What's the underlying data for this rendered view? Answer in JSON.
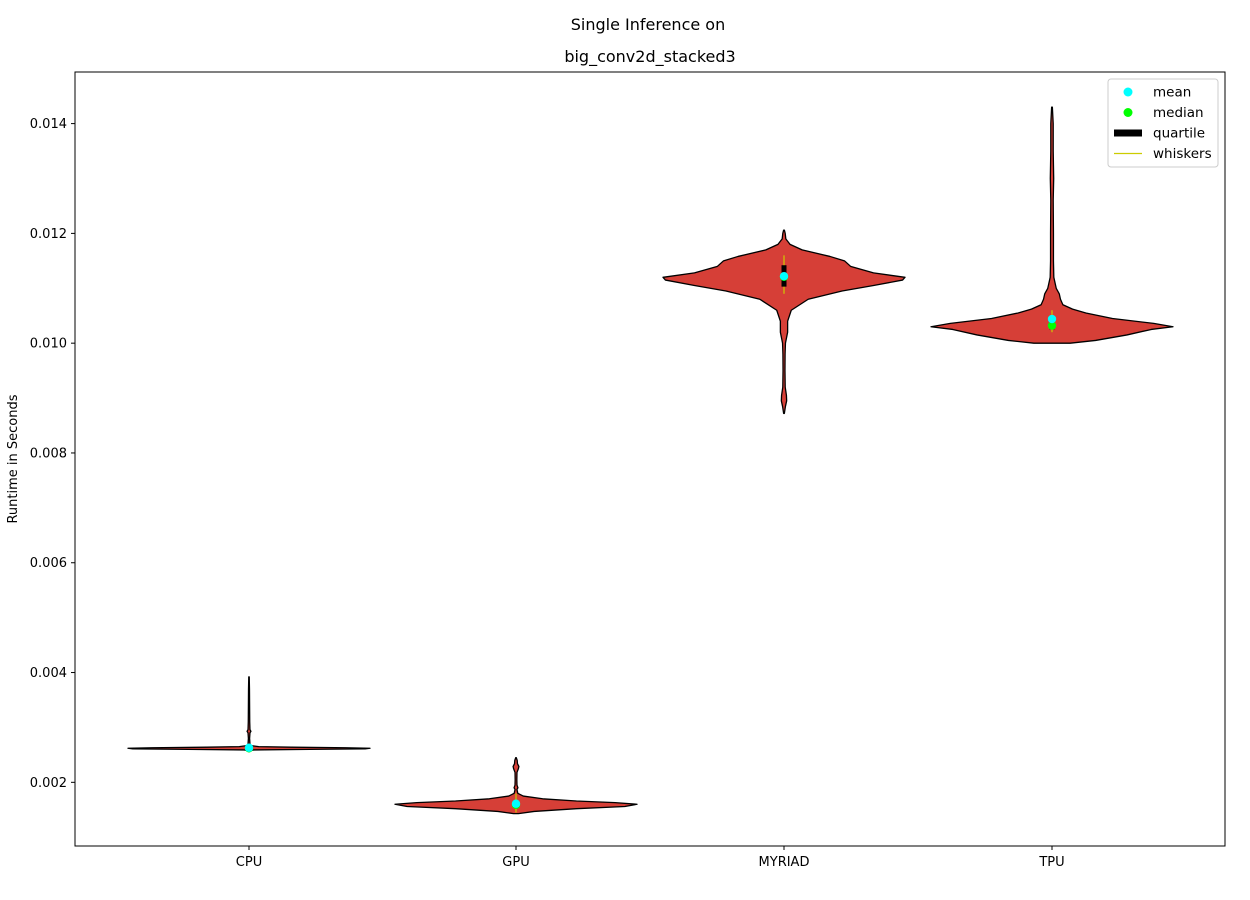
{
  "chart_data": {
    "type": "violin",
    "suptitle": "Single Inference on",
    "title": "big_conv2d_stacked3",
    "xlabel": "",
    "ylabel": "Runtime in Seconds",
    "categories": [
      "CPU",
      "GPU",
      "MYRIAD",
      "TPU"
    ],
    "ylim": [
      0.00084,
      0.01494
    ],
    "yticks": [
      0.002,
      0.004,
      0.006,
      0.008,
      0.01,
      0.012,
      0.014
    ],
    "ytick_labels": [
      "0.002",
      "0.004",
      "0.006",
      "0.008",
      "0.010",
      "0.012",
      "0.014"
    ],
    "grid": false,
    "legend_position": "top-right",
    "legend": [
      {
        "label": "mean",
        "kind": "dot",
        "color": "#00ffff"
      },
      {
        "label": "median",
        "kind": "dot",
        "color": "#00ff00"
      },
      {
        "label": "quartile",
        "kind": "bar",
        "color": "#000000"
      },
      {
        "label": "whiskers",
        "kind": "line",
        "color": "#cccc00"
      }
    ],
    "colors": {
      "violin_fill": "#d63f37",
      "violin_edge": "#000000",
      "mean": "#00ffff",
      "median": "#00ff00",
      "quartile": "#000000",
      "whisker": "#cccc00"
    },
    "series": [
      {
        "category": "CPU",
        "mean": 0.00263,
        "median": 0.00262,
        "q1": 0.0026,
        "q3": 0.00264,
        "whisker_low": 0.00257,
        "whisker_high": 0.0027,
        "density": [
          [
            0.00256,
            0.002
          ],
          [
            0.00258,
            0.012
          ],
          [
            0.00259,
            0.04
          ],
          [
            0.0026,
            0.5
          ],
          [
            0.00261,
            0.96
          ],
          [
            0.00262,
            1.0
          ],
          [
            0.00263,
            0.8
          ],
          [
            0.00264,
            0.35
          ],
          [
            0.00265,
            0.08
          ],
          [
            0.00267,
            0.012
          ],
          [
            0.0027,
            0.008
          ],
          [
            0.0028,
            0.005
          ],
          [
            0.0029,
            0.008
          ],
          [
            0.00293,
            0.016
          ],
          [
            0.00296,
            0.008
          ],
          [
            0.0031,
            0.006
          ],
          [
            0.0034,
            0.005
          ],
          [
            0.0037,
            0.004
          ],
          [
            0.00392,
            0.002
          ]
        ]
      },
      {
        "category": "GPU",
        "mean": 0.00161,
        "median": 0.00159,
        "q1": 0.00156,
        "q3": 0.00165,
        "whisker_low": 0.00145,
        "whisker_high": 0.0018,
        "density": [
          [
            0.00143,
            0.02
          ],
          [
            0.00147,
            0.15
          ],
          [
            0.00152,
            0.5
          ],
          [
            0.00156,
            0.9
          ],
          [
            0.0016,
            1.0
          ],
          [
            0.00163,
            0.82
          ],
          [
            0.00166,
            0.5
          ],
          [
            0.0017,
            0.22
          ],
          [
            0.00175,
            0.06
          ],
          [
            0.0018,
            0.015
          ],
          [
            0.00187,
            0.008
          ],
          [
            0.0019,
            0.016
          ],
          [
            0.00195,
            0.008
          ],
          [
            0.00205,
            0.007
          ],
          [
            0.00218,
            0.008
          ],
          [
            0.00225,
            0.02
          ],
          [
            0.00229,
            0.024
          ],
          [
            0.00234,
            0.012
          ],
          [
            0.0024,
            0.01
          ],
          [
            0.00245,
            0.002
          ]
        ]
      },
      {
        "category": "MYRIAD",
        "mean": 0.01122,
        "median": 0.01121,
        "q1": 0.01103,
        "q3": 0.01142,
        "whisker_low": 0.0109,
        "whisker_high": 0.0116,
        "density": [
          [
            0.00872,
            0.003
          ],
          [
            0.00885,
            0.012
          ],
          [
            0.00895,
            0.022
          ],
          [
            0.00905,
            0.02
          ],
          [
            0.0092,
            0.01
          ],
          [
            0.0095,
            0.008
          ],
          [
            0.0098,
            0.009
          ],
          [
            0.01,
            0.012
          ],
          [
            0.0102,
            0.03
          ],
          [
            0.0104,
            0.03
          ],
          [
            0.0106,
            0.06
          ],
          [
            0.0108,
            0.2
          ],
          [
            0.01095,
            0.48
          ],
          [
            0.01105,
            0.74
          ],
          [
            0.01115,
            0.98
          ],
          [
            0.0112,
            1.0
          ],
          [
            0.01128,
            0.74
          ],
          [
            0.0114,
            0.55
          ],
          [
            0.0115,
            0.5
          ],
          [
            0.01158,
            0.38
          ],
          [
            0.0117,
            0.15
          ],
          [
            0.0118,
            0.05
          ],
          [
            0.0119,
            0.015
          ],
          [
            0.012,
            0.01
          ],
          [
            0.01206,
            0.003
          ]
        ]
      },
      {
        "category": "TPU",
        "mean": 0.01044,
        "median": 0.01032,
        "q1": 0.01025,
        "q3": 0.01038,
        "whisker_low": 0.0102,
        "whisker_high": 0.0106,
        "density": [
          [
            0.01,
            0.15
          ],
          [
            0.01005,
            0.36
          ],
          [
            0.01015,
            0.62
          ],
          [
            0.01025,
            0.82
          ],
          [
            0.0103,
            1.0
          ],
          [
            0.01036,
            0.84
          ],
          [
            0.01045,
            0.5
          ],
          [
            0.01055,
            0.28
          ],
          [
            0.01062,
            0.17
          ],
          [
            0.0107,
            0.09
          ],
          [
            0.0108,
            0.07
          ],
          [
            0.0109,
            0.06
          ],
          [
            0.011,
            0.035
          ],
          [
            0.0112,
            0.015
          ],
          [
            0.0115,
            0.012
          ],
          [
            0.012,
            0.012
          ],
          [
            0.0126,
            0.01
          ],
          [
            0.013,
            0.014
          ],
          [
            0.0135,
            0.01
          ],
          [
            0.014,
            0.01
          ],
          [
            0.0143,
            0.003
          ]
        ]
      }
    ]
  }
}
